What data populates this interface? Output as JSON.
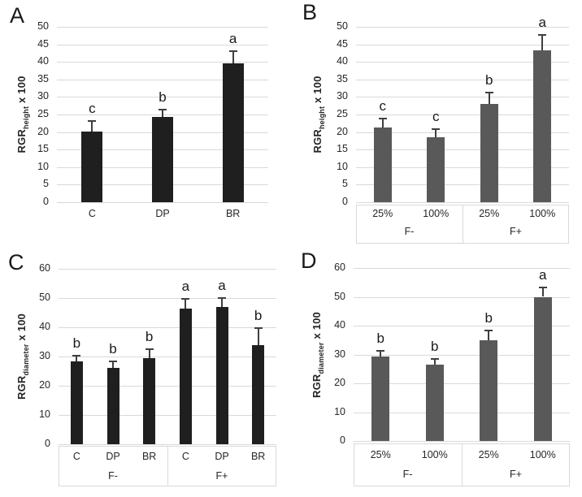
{
  "figure": {
    "background": "#ffffff",
    "grid_color": "#d9d9d9",
    "error_bar_color": "#3f3f3f",
    "text_color": "#262626"
  },
  "chart_data": [
    {
      "panel": "A",
      "type": "bar",
      "ylabel": {
        "prefix": "RGR",
        "sub": "height",
        "suffix": " x 100"
      },
      "ylim": [
        0,
        50
      ],
      "yticks": [
        0,
        5,
        10,
        15,
        20,
        25,
        30,
        35,
        40,
        45,
        50
      ],
      "grid": true,
      "bar_color": "#1f1f1f",
      "categories": [
        "C",
        "DP",
        "BR"
      ],
      "values": [
        20.2,
        24.3,
        39.5
      ],
      "errors": [
        3.0,
        2.2,
        3.6
      ],
      "sig_letters": [
        "c",
        "b",
        "a"
      ],
      "groups": null
    },
    {
      "panel": "B",
      "type": "bar",
      "ylabel": {
        "prefix": "RGR",
        "sub": "height",
        "suffix": " x 100"
      },
      "ylim": [
        0,
        50
      ],
      "yticks": [
        0,
        5,
        10,
        15,
        20,
        25,
        30,
        35,
        40,
        45,
        50
      ],
      "grid": true,
      "bar_color": "#595959",
      "categories": [
        "25%",
        "100%",
        "25%",
        "100%"
      ],
      "values": [
        21.3,
        18.6,
        28.1,
        43.3
      ],
      "errors": [
        2.6,
        2.2,
        3.2,
        4.3
      ],
      "sig_letters": [
        "c",
        "c",
        "b",
        "a"
      ],
      "groups": {
        "labels": [
          "F-",
          "F+"
        ],
        "sizes": [
          2,
          2
        ]
      }
    },
    {
      "panel": "C",
      "type": "bar",
      "ylabel": {
        "prefix": "RGR",
        "sub": "diameter",
        "suffix": " x 100"
      },
      "ylim": [
        0,
        60
      ],
      "yticks": [
        0,
        10,
        20,
        30,
        40,
        50,
        60
      ],
      "grid": true,
      "bar_color": "#1f1f1f",
      "categories": [
        "C",
        "DP",
        "BR",
        "C",
        "DP",
        "BR"
      ],
      "values": [
        28.4,
        26.1,
        29.4,
        46.4,
        46.9,
        34.0
      ],
      "errors": [
        2.0,
        2.2,
        3.0,
        3.4,
        3.1,
        5.8
      ],
      "sig_letters": [
        "b",
        "b",
        "b",
        "a",
        "a",
        "b"
      ],
      "groups": {
        "labels": [
          "F-",
          "F+"
        ],
        "sizes": [
          3,
          3
        ]
      }
    },
    {
      "panel": "D",
      "type": "bar",
      "ylabel": {
        "prefix": "RGR",
        "sub": "diameter",
        "suffix": " x 100"
      },
      "ylim": [
        0,
        60
      ],
      "yticks": [
        0,
        10,
        20,
        30,
        40,
        50,
        60
      ],
      "grid": true,
      "bar_color": "#595959",
      "categories": [
        "25%",
        "100%",
        "25%",
        "100%"
      ],
      "values": [
        29.4,
        26.6,
        35.0,
        50.0
      ],
      "errors": [
        2.0,
        1.9,
        3.2,
        3.3
      ],
      "sig_letters": [
        "b",
        "b",
        "b",
        "a"
      ],
      "groups": {
        "labels": [
          "F-",
          "F+"
        ],
        "sizes": [
          2,
          2
        ]
      }
    }
  ]
}
